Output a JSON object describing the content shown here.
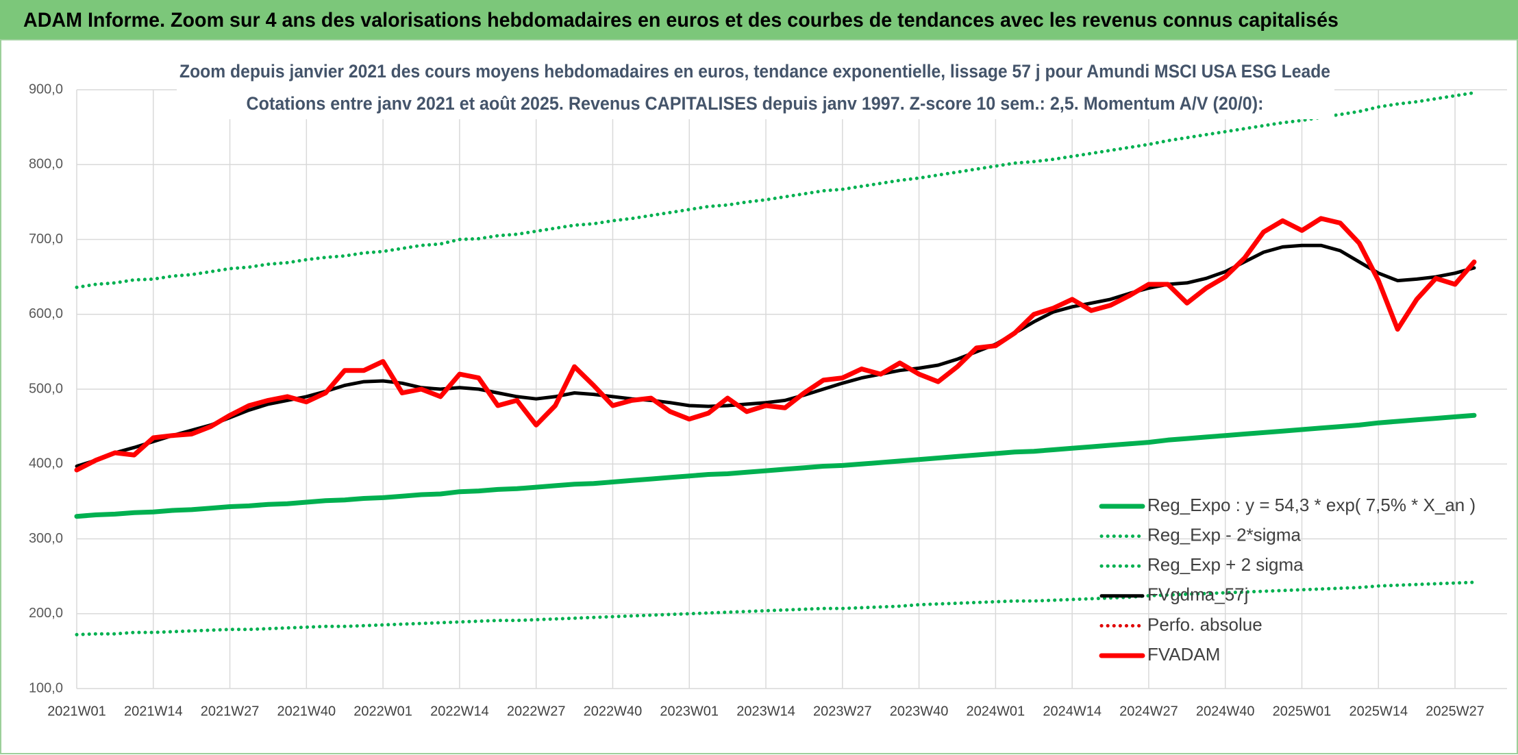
{
  "header": {
    "title": "ADAM Informe. Zoom sur 4 ans des valorisations hebdomadaires en euros et des courbes de tendances avec les revenus connus capitalisés"
  },
  "chart_data": {
    "type": "line",
    "subtitle": [
      "Zoom depuis janvier 2021 des cours moyens hebdomadaires en euros, tendance exponentielle, lissage 57 j pour Amundi MSCI USA ESG Leade",
      "Cotations entre janv 2021 et août 2025. Revenus CAPITALISES depuis janv 1997. Z-score 10 sem.: 2,5. Momentum A/V (20/0):"
    ],
    "categories": [
      "2021W01",
      null,
      null,
      null,
      "2021W14",
      null,
      null,
      null,
      "2021W27",
      null,
      null,
      null,
      "2021W40",
      null,
      null,
      null,
      "2022W01",
      null,
      null,
      null,
      "2022W14",
      null,
      null,
      null,
      "2022W27",
      null,
      null,
      null,
      "2022W40",
      null,
      null,
      null,
      "2023W01",
      null,
      null,
      null,
      "2023W14",
      null,
      null,
      null,
      "2023W27",
      null,
      null,
      null,
      "2023W40",
      null,
      null,
      null,
      "2024W01",
      null,
      null,
      null,
      "2024W14",
      null,
      null,
      null,
      "2024W27",
      null,
      null,
      null,
      "2024W40",
      null,
      null,
      null,
      "2025W01",
      null,
      null,
      null,
      "2025W14",
      null,
      null,
      null,
      "2025W27",
      null
    ],
    "ylim": [
      100,
      900
    ],
    "yticks": [
      {
        "value": 100,
        "label": "100,0"
      },
      {
        "value": 200,
        "label": "200,0"
      },
      {
        "value": 300,
        "label": "300,0"
      },
      {
        "value": 400,
        "label": "400,0"
      },
      {
        "value": 500,
        "label": "500,0"
      },
      {
        "value": 600,
        "label": "600,0"
      },
      {
        "value": 700,
        "label": "700,0"
      },
      {
        "value": 800,
        "label": "800,0"
      },
      {
        "value": 900,
        "label": "900,0"
      }
    ],
    "grid": true,
    "legend": "lower right",
    "series": [
      {
        "name": "Reg_Expo : y = 54,3 * exp( 7,5% *  X_an )",
        "color": "#00b050",
        "style": "solid",
        "values": [
          330,
          332,
          333,
          335,
          336,
          338,
          339,
          341,
          343,
          344,
          346,
          347,
          349,
          351,
          352,
          354,
          355,
          357,
          359,
          360,
          363,
          364,
          366,
          367,
          369,
          371,
          373,
          374,
          376,
          378,
          380,
          382,
          384,
          386,
          387,
          389,
          391,
          393,
          395,
          397,
          398,
          400,
          402,
          404,
          406,
          408,
          410,
          412,
          414,
          416,
          417,
          419,
          421,
          423,
          425,
          427,
          429,
          432,
          434,
          436,
          438,
          440,
          442,
          444,
          446,
          448,
          450,
          452,
          455,
          457,
          459,
          461,
          463,
          465
        ]
      },
      {
        "name": "Reg_Exp - 2*sigma",
        "color": "#00b050",
        "style": "dotted",
        "values": [
          172,
          173,
          173,
          175,
          175,
          176,
          177,
          178,
          179,
          179,
          180,
          181,
          182,
          183,
          183,
          184,
          185,
          186,
          187,
          188,
          189,
          190,
          191,
          191,
          192,
          193,
          194,
          195,
          196,
          197,
          198,
          199,
          200,
          201,
          202,
          203,
          204,
          205,
          206,
          207,
          207,
          208,
          209,
          210,
          212,
          213,
          214,
          215,
          216,
          217,
          217,
          218,
          219,
          220,
          221,
          222,
          224,
          225,
          226,
          227,
          228,
          229,
          230,
          231,
          232,
          233,
          234,
          235,
          237,
          238,
          239,
          240,
          241,
          242
        ]
      },
      {
        "name": "Reg_Exp + 2 sigma",
        "color": "#00b050",
        "style": "dotted",
        "values": [
          636,
          640,
          642,
          646,
          647,
          651,
          653,
          657,
          661,
          663,
          667,
          669,
          673,
          676,
          678,
          682,
          684,
          688,
          692,
          694,
          700,
          701,
          705,
          707,
          711,
          715,
          719,
          721,
          725,
          728,
          732,
          736,
          740,
          744,
          746,
          750,
          753,
          757,
          761,
          765,
          767,
          771,
          775,
          779,
          782,
          786,
          790,
          794,
          798,
          802,
          804,
          807,
          811,
          815,
          819,
          823,
          827,
          832,
          836,
          840,
          844,
          848,
          852,
          856,
          859,
          863,
          867,
          871,
          877,
          881,
          884,
          888,
          892,
          896
        ]
      },
      {
        "name": "FVgdma_57j",
        "color": "#000000",
        "style": "solid",
        "values": [
          397,
          405,
          415,
          422,
          430,
          438,
          445,
          452,
          462,
          472,
          480,
          485,
          490,
          497,
          505,
          510,
          511,
          508,
          502,
          500,
          502,
          500,
          495,
          490,
          487,
          490,
          495,
          493,
          490,
          487,
          485,
          482,
          478,
          477,
          478,
          480,
          482,
          485,
          492,
          500,
          508,
          515,
          520,
          525,
          528,
          532,
          540,
          550,
          560,
          575,
          590,
          603,
          610,
          615,
          620,
          628,
          635,
          640,
          642,
          648,
          657,
          670,
          683,
          690,
          692,
          692,
          685,
          670,
          655,
          645,
          647,
          650,
          655,
          662
        ]
      },
      {
        "name": "Perfo. absolue",
        "color": "#e00000",
        "style": "dotted",
        "values": [
          null,
          null,
          null,
          null,
          null,
          null,
          null,
          null,
          null,
          null,
          null,
          null,
          null,
          null,
          null,
          null,
          null,
          null,
          null,
          null,
          null,
          null,
          null,
          null,
          null,
          null,
          null,
          null,
          null,
          null,
          null,
          null,
          null,
          null,
          null,
          null,
          null,
          null,
          null,
          null,
          null,
          null,
          null,
          null,
          null,
          null,
          null,
          null,
          null,
          null,
          null,
          null,
          null,
          null,
          null,
          null,
          null,
          null,
          null,
          null,
          null,
          null,
          null,
          null,
          null,
          null,
          null,
          null,
          null,
          null,
          null,
          null,
          null,
          null
        ]
      },
      {
        "name": "FVADAM",
        "color": "#ff0000",
        "style": "thick",
        "values": [
          392,
          405,
          415,
          412,
          435,
          438,
          440,
          450,
          465,
          478,
          485,
          490,
          483,
          495,
          525,
          525,
          537,
          495,
          500,
          490,
          520,
          515,
          478,
          485,
          452,
          478,
          530,
          505,
          478,
          485,
          488,
          470,
          460,
          468,
          488,
          470,
          478,
          475,
          495,
          512,
          515,
          527,
          520,
          535,
          520,
          510,
          530,
          555,
          558,
          575,
          600,
          608,
          620,
          605,
          612,
          625,
          640,
          640,
          615,
          635,
          650,
          675,
          710,
          725,
          712,
          728,
          722,
          695,
          645,
          580,
          620,
          648,
          640,
          670
        ]
      }
    ]
  }
}
